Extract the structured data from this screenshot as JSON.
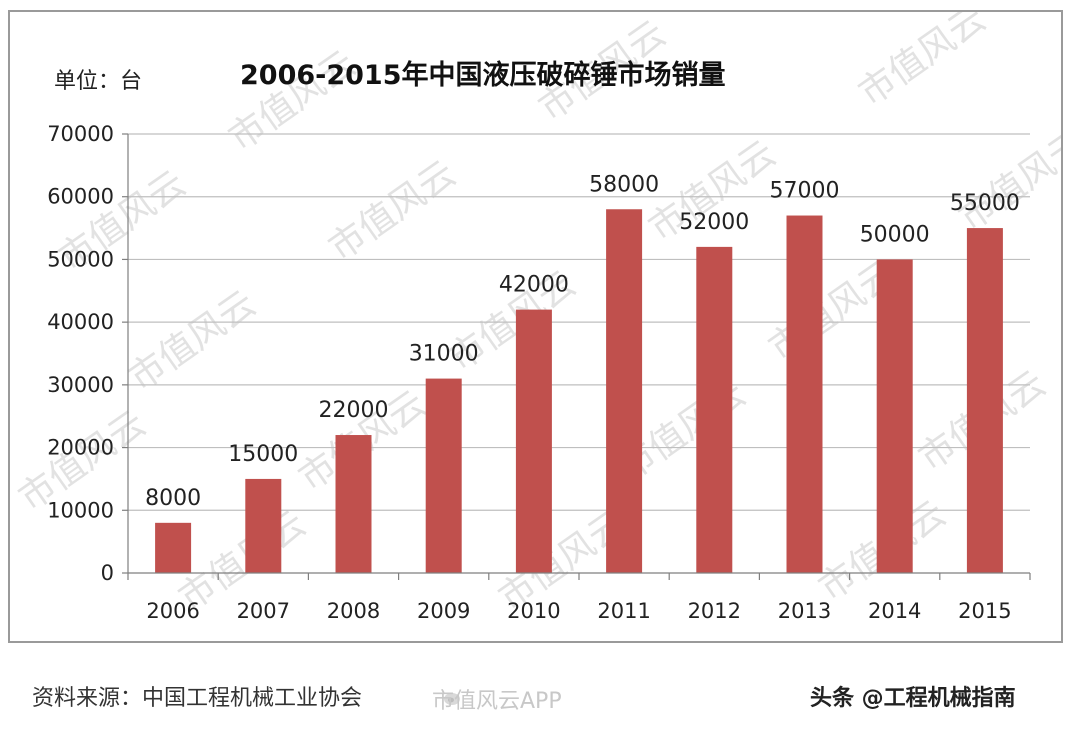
{
  "unit_label": "单位：台",
  "source_text": "资料来源：中国工程机械工业协会",
  "brand_text": "头条 @工程机械指南",
  "app_watermark": "市值风云APP",
  "watermark_text": "市值风云",
  "colors": {
    "bar": "#c0504d",
    "grid": "#bfbfbf",
    "axis": "#7f7f7f",
    "frame": "#9a9a9a"
  },
  "icons": {
    "app_watermark": "weibo-icon"
  },
  "chart_data": {
    "type": "bar",
    "title": "2006-2015年中国液压破碎锤市场销量",
    "xlabel": "",
    "ylabel": "",
    "categories": [
      "2006",
      "2007",
      "2008",
      "2009",
      "2010",
      "2011",
      "2012",
      "2013",
      "2014",
      "2015"
    ],
    "values": [
      8000,
      15000,
      22000,
      31000,
      42000,
      58000,
      52000,
      57000,
      50000,
      55000
    ],
    "data_labels": [
      "8000",
      "15000",
      "22000",
      "31000",
      "42000",
      "58000",
      "52000",
      "57000",
      "50000",
      "55000"
    ],
    "ylim": [
      0,
      70000
    ],
    "yticks": [
      0,
      10000,
      20000,
      30000,
      40000,
      50000,
      60000,
      70000
    ],
    "ytick_labels": [
      "0",
      "10000",
      "20000",
      "30000",
      "40000",
      "50000",
      "60000",
      "70000"
    ],
    "grid": true,
    "legend": "none"
  }
}
